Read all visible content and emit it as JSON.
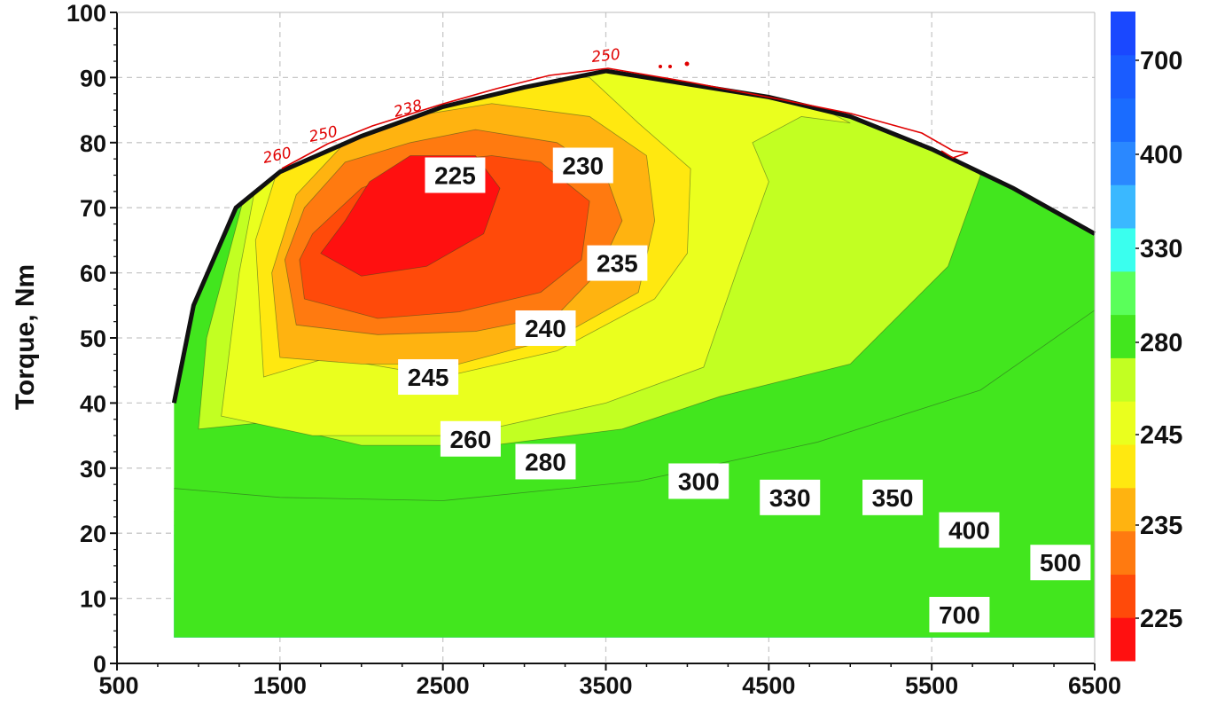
{
  "chart_data": {
    "type": "heatmap",
    "subtype": "contour map (engine BSFC map)",
    "title": "",
    "xlabel": "",
    "ylabel": "Torque, Nm",
    "xlim": [
      500,
      6500
    ],
    "ylim": [
      0,
      100
    ],
    "x_ticks": [
      "500",
      "1500",
      "2500",
      "3500",
      "4500",
      "5500",
      "6500"
    ],
    "y_ticks": [
      "0",
      "10",
      "20",
      "30",
      "40",
      "50",
      "60",
      "70",
      "80",
      "90",
      "100"
    ],
    "grid": true,
    "max_torque_curve": [
      [
        850,
        40
      ],
      [
        970,
        55
      ],
      [
        1230,
        70
      ],
      [
        1500,
        75.5
      ],
      [
        2000,
        81
      ],
      [
        2500,
        85.5
      ],
      [
        3000,
        88.5
      ],
      [
        3500,
        91
      ],
      [
        4000,
        89
      ],
      [
        4500,
        87
      ],
      [
        5000,
        84
      ],
      [
        5500,
        79
      ],
      [
        6000,
        73
      ],
      [
        6500,
        66
      ]
    ],
    "min_torque": 4,
    "contour_labels": [
      {
        "text": "225",
        "x": 2575,
        "y": 75
      },
      {
        "text": "230",
        "x": 3360,
        "y": 76.5
      },
      {
        "text": "235",
        "x": 3570,
        "y": 61.5
      },
      {
        "text": "240",
        "x": 3130,
        "y": 51.5
      },
      {
        "text": "245",
        "x": 2410,
        "y": 44
      },
      {
        "text": "260",
        "x": 2670,
        "y": 34.5
      },
      {
        "text": "280",
        "x": 3130,
        "y": 31
      },
      {
        "text": "300",
        "x": 4070,
        "y": 28
      },
      {
        "text": "330",
        "x": 4630,
        "y": 25.5
      },
      {
        "text": "350",
        "x": 5260,
        "y": 25.5
      },
      {
        "text": "400",
        "x": 5730,
        "y": 20.5
      },
      {
        "text": "500",
        "x": 6290,
        "y": 15.5
      },
      {
        "text": "700",
        "x": 5670,
        "y": 7.5
      }
    ],
    "colorbar": {
      "tick_labels": [
        "700",
        "400",
        "330",
        "280",
        "245",
        "235",
        "225"
      ],
      "band_colors": [
        "#ff1010",
        "#ff4a0a",
        "#ff7a10",
        "#ffb310",
        "#ffe810",
        "#eaff1e",
        "#c2ff22",
        "#42e61e",
        "#5aff5a",
        "#3affee",
        "#3ab8ff",
        "#2a88ff",
        "#1a6cff",
        "#1a5cff",
        "#1a48ff"
      ]
    },
    "annotations": [
      "250",
      "238",
      "260",
      "250"
    ]
  }
}
